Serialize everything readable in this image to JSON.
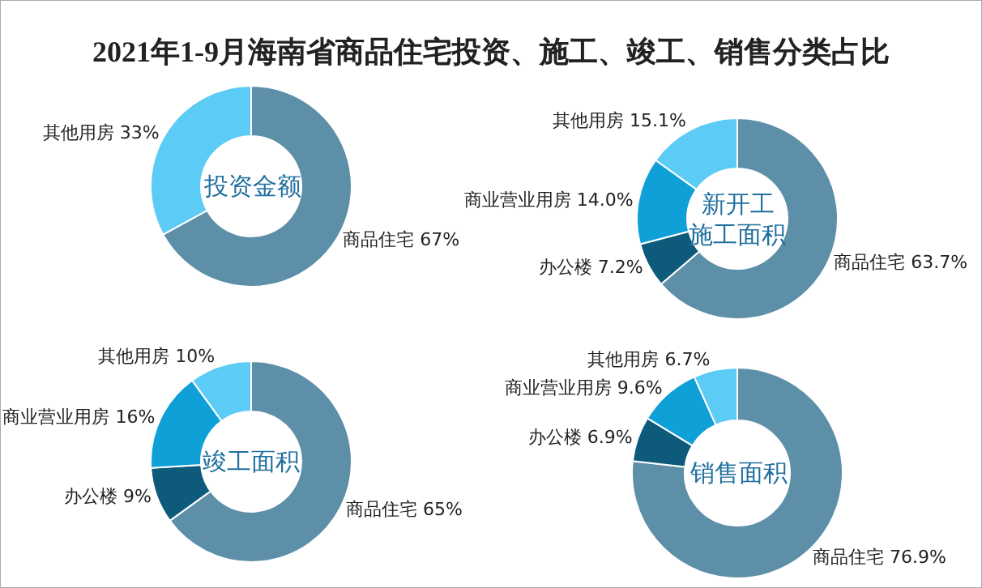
{
  "chart_data": [
    {
      "type": "donut",
      "title": "2021年1-9月海南省商品住宅投资、施工、竣工、销售分类占比",
      "annotations": [
        "投资金额"
      ],
      "categories": [
        "商品住宅",
        "其他用房"
      ],
      "values": [
        67,
        33
      ],
      "value_labels": [
        "67%",
        "33%"
      ],
      "colors": [
        "#5e8fa8",
        "#5ccbf5"
      ]
    },
    {
      "type": "donut",
      "annotations": [
        "新开工",
        "施工面积"
      ],
      "categories": [
        "商品住宅",
        "办公楼",
        "商业营业用房",
        "其他用房"
      ],
      "values": [
        63.7,
        7.2,
        14.0,
        15.1
      ],
      "value_labels": [
        "63.7%",
        "7.2%",
        "14.0%",
        "15.1%"
      ],
      "colors": [
        "#5e8fa8",
        "#0e5a7a",
        "#0fa0d8",
        "#5ccbf5"
      ]
    },
    {
      "type": "donut",
      "annotations": [
        "竣工面积"
      ],
      "categories": [
        "商品住宅",
        "办公楼",
        "商业营业用房",
        "其他用房"
      ],
      "values": [
        65,
        9,
        16,
        10
      ],
      "value_labels": [
        "65%",
        "9%",
        "16%",
        "10%"
      ],
      "colors": [
        "#5e8fa8",
        "#0e5a7a",
        "#0fa0d8",
        "#5ccbf5"
      ]
    },
    {
      "type": "donut",
      "annotations": [
        "销售面积"
      ],
      "categories": [
        "商品住宅",
        "办公楼",
        "商业营业用房",
        "其他用房"
      ],
      "values": [
        76.9,
        6.9,
        9.6,
        6.7
      ],
      "value_labels": [
        "76.9%",
        "6.9%",
        "9.6%",
        "6.7%"
      ],
      "colors": [
        "#5e8fa8",
        "#0e5a7a",
        "#0fa0d8",
        "#5ccbf5"
      ]
    }
  ]
}
